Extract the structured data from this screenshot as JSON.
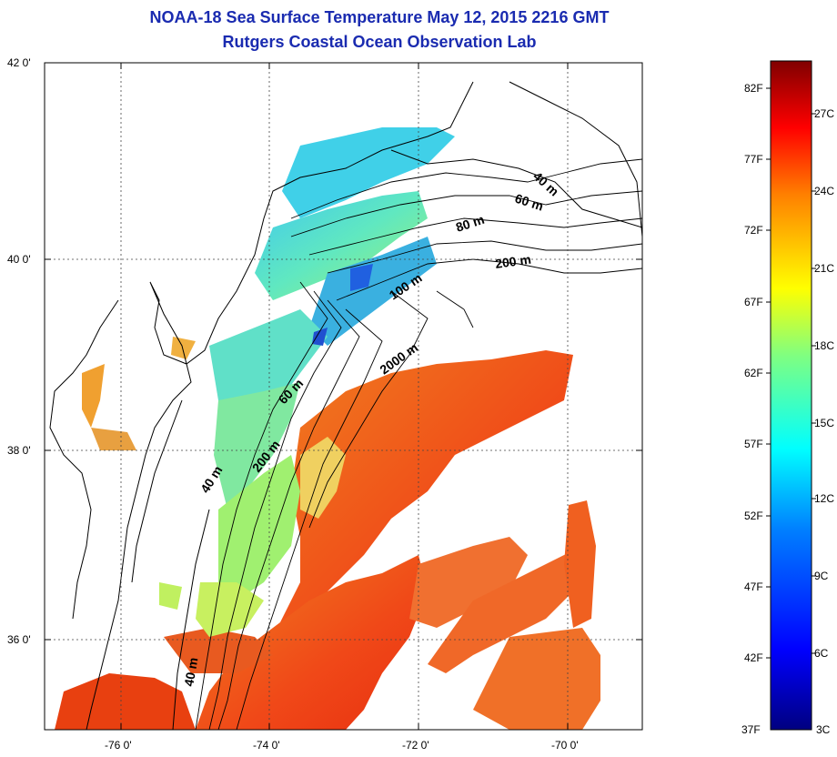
{
  "title": {
    "line1": "NOAA-18 Sea Surface Temperature May 12, 2015 2216 GMT",
    "line2": "Rutgers Coastal Ocean Observation Lab"
  },
  "axes": {
    "y_ticks": [
      "42 0'",
      "40 0'",
      "38 0'",
      "36 0'"
    ],
    "x_ticks": [
      "-76 0'",
      "-74 0'",
      "-72 0'",
      "-70 0'"
    ]
  },
  "contour_labels": [
    "40 m",
    "60 m",
    "80 m",
    "200 m",
    "100 m",
    "2000 m",
    "60 m",
    "200 m",
    "40 m",
    "40 m"
  ],
  "colorbar": {
    "fahrenheit": [
      "82F",
      "77F",
      "72F",
      "67F",
      "62F",
      "57F",
      "52F",
      "47F",
      "42F",
      "37F"
    ],
    "celsius": [
      "27C",
      "24C",
      "21C",
      "18C",
      "15C",
      "12C",
      "9C",
      "6C",
      "3C"
    ],
    "colors": [
      "#000080",
      "#0000ff",
      "#0080ff",
      "#00ffff",
      "#80ff80",
      "#ffff00",
      "#ff8000",
      "#ff0000",
      "#800000"
    ]
  },
  "colors": {
    "title": "#1a2bb0",
    "warm_water": "#f0601c",
    "cool_water": "#50d8e0",
    "mid_water": "#a0f070"
  }
}
